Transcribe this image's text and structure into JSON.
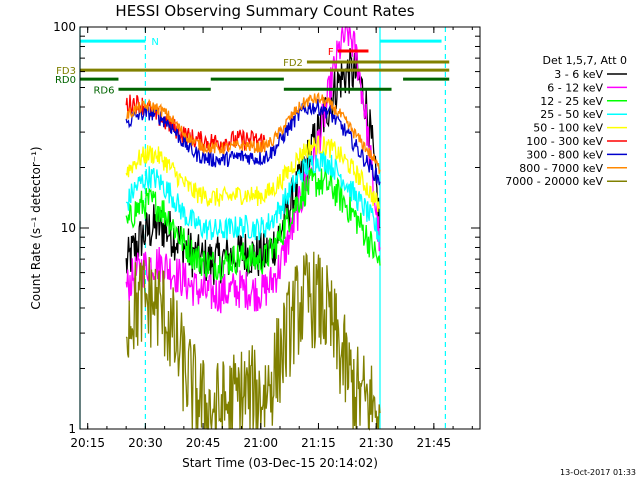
{
  "chart_data": {
    "type": "line",
    "title": "HESSI Observing Summary Count Rates",
    "xlabel": "Start Time (03-Dec-15 20:14:02)",
    "ylabel": "Count Rate (s⁻¹ detector⁻¹)",
    "x_ticks": [
      "20:15",
      "20:30",
      "20:45",
      "21:00",
      "21:15",
      "21:30",
      "21:45"
    ],
    "y_ticks": [
      "1",
      "10",
      "100"
    ],
    "ylim": [
      1,
      100
    ],
    "yscale": "log",
    "xlim_minutes": [
      -1,
      103
    ],
    "grid": false,
    "legend_position": "right",
    "legend_title": "Det 1,5,7, Att 0",
    "stamp": "13-Oct-2017 01:33",
    "series": [
      {
        "name": "3 - 6 keV",
        "color": "#000000",
        "t": [
          11,
          13,
          15,
          17,
          19,
          21,
          23,
          25,
          27,
          29,
          31,
          33,
          35,
          37,
          39,
          41,
          43,
          45,
          47,
          49,
          51,
          53,
          55,
          57,
          59,
          61,
          63,
          65,
          67,
          69,
          71,
          73,
          75,
          77
        ],
        "values": [
          6.5,
          7.8,
          9.0,
          9.8,
          10.3,
          10.0,
          9.3,
          8.5,
          7.8,
          7.2,
          6.9,
          6.8,
          6.9,
          7.1,
          7.3,
          7.6,
          7.5,
          7.2,
          7.3,
          8.0,
          9.5,
          12,
          15,
          19,
          24,
          30,
          38,
          48,
          56,
          60,
          58,
          45,
          25,
          10
        ]
      },
      {
        "name": "6 - 12 keV",
        "color": "#ff00ff",
        "t": [
          11,
          13,
          15,
          17,
          19,
          21,
          23,
          25,
          27,
          29,
          31,
          33,
          35,
          37,
          39,
          41,
          43,
          45,
          47,
          49,
          51,
          53,
          55,
          57,
          59,
          61,
          63,
          65,
          67,
          69,
          71,
          73,
          75,
          77
        ],
        "values": [
          5.0,
          5.8,
          6.3,
          6.6,
          6.7,
          6.5,
          6.1,
          5.7,
          5.3,
          5.0,
          4.8,
          4.7,
          4.7,
          4.8,
          4.9,
          5.0,
          4.9,
          4.8,
          4.9,
          5.4,
          6.5,
          8.5,
          11,
          15,
          20,
          27,
          40,
          60,
          85,
          95,
          70,
          40,
          18,
          8
        ]
      },
      {
        "name": "12 - 25 keV",
        "color": "#00ff00",
        "t": [
          11,
          13,
          15,
          17,
          19,
          21,
          23,
          25,
          27,
          29,
          31,
          33,
          35,
          37,
          39,
          41,
          43,
          45,
          47,
          49,
          51,
          53,
          55,
          57,
          59,
          61,
          63,
          65,
          67,
          69,
          71,
          73,
          75,
          77
        ],
        "values": [
          10,
          12,
          13,
          13.5,
          13,
          12,
          10.5,
          9,
          8,
          7.2,
          6.8,
          6.6,
          6.6,
          6.8,
          7.0,
          7.2,
          7.1,
          6.9,
          7.0,
          7.8,
          9.0,
          11,
          13,
          15,
          16.5,
          17,
          16.5,
          15.5,
          14,
          12.5,
          11,
          9.5,
          8,
          6.5
        ]
      },
      {
        "name": "25 - 50 keV",
        "color": "#00ffff",
        "t": [
          11,
          13,
          15,
          17,
          19,
          21,
          23,
          25,
          27,
          29,
          31,
          33,
          35,
          37,
          39,
          41,
          43,
          45,
          47,
          49,
          51,
          53,
          55,
          57,
          59,
          61,
          63,
          65,
          67,
          69,
          71,
          73,
          75,
          77
        ],
        "values": [
          13,
          15.5,
          17,
          18,
          17.5,
          16,
          14.5,
          12.5,
          11.2,
          10.5,
          10,
          9.8,
          9.7,
          9.8,
          10,
          10.2,
          10.1,
          9.9,
          10.1,
          11,
          12.5,
          14.5,
          17,
          19.5,
          21,
          22,
          21.5,
          20,
          18,
          16,
          14,
          12.5,
          11,
          9
        ]
      },
      {
        "name": "50 - 100 keV",
        "color": "#ffff00",
        "t": [
          11,
          13,
          15,
          17,
          19,
          21,
          23,
          25,
          27,
          29,
          31,
          33,
          35,
          37,
          39,
          41,
          43,
          45,
          47,
          49,
          51,
          53,
          55,
          57,
          59,
          61,
          63,
          65,
          67,
          69,
          71,
          73,
          75,
          77
        ],
        "values": [
          19,
          21,
          22.5,
          23.5,
          23,
          21.5,
          19.5,
          17.5,
          16,
          15,
          14.5,
          14.2,
          14.1,
          14.2,
          14.5,
          14.7,
          14.6,
          14.4,
          14.6,
          15.5,
          17,
          19,
          21.5,
          24,
          25.5,
          26,
          25.5,
          24.5,
          22.5,
          20.5,
          18.5,
          16.5,
          14.5,
          12.5
        ]
      },
      {
        "name": "100 - 300 keV",
        "color": "#ff0000",
        "t": [
          11,
          13,
          15,
          17,
          19,
          21,
          23,
          25,
          27,
          29,
          31,
          33,
          35,
          37,
          39,
          41,
          43,
          45,
          47
        ],
        "values": [
          41,
          42,
          41,
          39,
          36,
          34,
          32,
          30,
          28.5,
          27.5,
          27,
          26.8,
          26.8,
          27,
          27.3,
          27.6,
          27.5,
          27.2,
          27.4
        ]
      },
      {
        "name": "300 - 800 keV",
        "color": "#0000cc",
        "t": [
          11,
          13,
          15,
          17,
          19,
          21,
          23,
          25,
          27,
          29,
          31,
          33,
          35,
          37,
          39,
          41,
          43,
          45,
          47,
          49,
          51,
          53,
          55,
          57,
          59,
          61,
          63,
          65,
          67,
          69,
          71,
          73,
          75,
          77
        ],
        "values": [
          33,
          35.5,
          37,
          37.5,
          36.5,
          34.5,
          31.5,
          28,
          25.5,
          23.5,
          22.5,
          22,
          21.8,
          22,
          22.4,
          22.8,
          22.6,
          22.2,
          22.5,
          24,
          27,
          31,
          35,
          38.5,
          40,
          40,
          38.5,
          35.5,
          32,
          28.5,
          25,
          22,
          19.5,
          17
        ]
      },
      {
        "name": "800 - 7000 keV",
        "color": "#ff8800",
        "t": [
          11,
          13,
          15,
          17,
          19,
          21,
          23,
          25,
          27,
          29,
          31,
          33,
          35,
          37,
          39,
          41,
          43,
          45,
          47,
          49,
          51,
          53,
          55,
          57,
          59,
          61,
          63,
          65,
          67,
          69,
          71,
          73,
          75,
          77
        ],
        "values": [
          36,
          38.5,
          40,
          40.5,
          39.5,
          37.5,
          34.5,
          31,
          28.5,
          26.5,
          25.5,
          25,
          24.8,
          25,
          25.4,
          25.8,
          25.6,
          25.2,
          25.5,
          27,
          30,
          34,
          38,
          41.5,
          43.5,
          44,
          42.5,
          39.5,
          36,
          32,
          28.5,
          25.5,
          22.5,
          19.5
        ]
      },
      {
        "name": "7000 - 20000 keV",
        "color": "#808000",
        "t": [
          11,
          13,
          15,
          17,
          19,
          21,
          23,
          25,
          27,
          29,
          31,
          33,
          35,
          37,
          39,
          41,
          43,
          45,
          47,
          49,
          51,
          53,
          55,
          57,
          59,
          61,
          63,
          65,
          67,
          69,
          71,
          73,
          75,
          77
        ],
        "values": [
          3.5,
          4.0,
          4.3,
          4.4,
          4.2,
          3.8,
          3.0,
          2.3,
          1.8,
          1.5,
          1.3,
          1.25,
          1.25,
          1.3,
          1.4,
          1.5,
          1.5,
          1.45,
          1.5,
          1.8,
          2.3,
          3.0,
          3.8,
          4.3,
          4.5,
          4.3,
          3.8,
          3.0,
          2.3,
          1.8,
          1.5,
          1.4,
          1.3,
          1.2
        ]
      }
    ],
    "flags": [
      {
        "label": "N",
        "color": "#00ffff",
        "t_start": -1,
        "t_end": 16,
        "value": 85
      },
      {
        "label": "F",
        "color": "#ff0000",
        "t_start": 66,
        "t_end": 74,
        "value": 76
      },
      {
        "label": "",
        "color": "#00ffff",
        "t_start": 77,
        "t_end": 93,
        "value": 85
      },
      {
        "label": "FD2",
        "color": "#808000",
        "t_start": 58,
        "t_end": 95,
        "value": 67
      },
      {
        "label": "FD3",
        "color": "#808000",
        "t_start": -1,
        "t_end": 95,
        "value": 61
      },
      {
        "label": "RD0",
        "color": "#006400",
        "t_start": -1,
        "t_end": 9,
        "value": 55
      },
      {
        "label": "",
        "color": "#006400",
        "t_start": 33,
        "t_end": 52,
        "value": 55
      },
      {
        "label": "",
        "color": "#006400",
        "t_start": 83,
        "t_end": 95,
        "value": 55
      },
      {
        "label": "RD6",
        "color": "#006400",
        "t_start": 9,
        "t_end": 33,
        "value": 49
      },
      {
        "label": "",
        "color": "#006400",
        "t_start": 52,
        "t_end": 80,
        "value": 49
      }
    ],
    "night_lines_minutes": [
      -1,
      16,
      77,
      94
    ]
  }
}
